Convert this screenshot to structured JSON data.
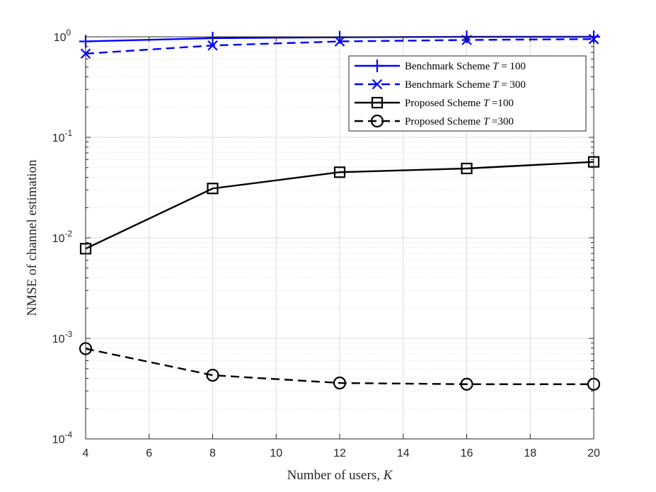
{
  "chart_data": {
    "type": "line",
    "title": "",
    "xlabel": "Number of users, K",
    "ylabel": "NMSE of channel estimation",
    "xscale": "linear",
    "yscale": "log",
    "xlim": [
      4,
      20
    ],
    "ylim": [
      0.0001,
      1
    ],
    "grid": true,
    "minor_grid": true,
    "legend_position": "top-right",
    "x_ticks": [
      4,
      6,
      8,
      10,
      12,
      14,
      16,
      18,
      20
    ],
    "x_tick_labels": [
      "4",
      "6",
      "8",
      "10",
      "12",
      "14",
      "16",
      "18",
      "20"
    ],
    "y_ticks": [
      0.0001,
      0.001,
      0.01,
      0.1,
      1
    ],
    "y_tick_labels": [
      {
        "base": "10",
        "exp": "-4"
      },
      {
        "base": "10",
        "exp": "-3"
      },
      {
        "base": "10",
        "exp": "-2"
      },
      {
        "base": "10",
        "exp": "-1"
      },
      {
        "base": "10",
        "exp": "0"
      }
    ],
    "x": [
      4,
      8,
      12,
      16,
      20
    ],
    "series": [
      {
        "name": "Benchmark Scheme T = 100",
        "label_text": "Benchmark Scheme ",
        "label_var": "T",
        "label_rest": " = 100",
        "color": "#0000ff",
        "line": "solid",
        "marker": "plus",
        "values": [
          0.9,
          0.97,
          0.99,
          1.0,
          1.0
        ]
      },
      {
        "name": "Benchmark Scheme T = 300",
        "label_text": "Benchmark Scheme ",
        "label_var": "T",
        "label_rest": " = 300",
        "color": "#0000ff",
        "line": "dashed",
        "marker": "x",
        "values": [
          0.68,
          0.82,
          0.9,
          0.93,
          0.95
        ]
      },
      {
        "name": "Proposed Scheme T =100",
        "label_text": "Proposed Scheme ",
        "label_var": "T",
        "label_rest": " =100",
        "color": "#000000",
        "line": "solid",
        "marker": "square",
        "values": [
          0.0078,
          0.031,
          0.045,
          0.049,
          0.057
        ]
      },
      {
        "name": "Proposed Scheme T =300",
        "label_text": "Proposed Scheme ",
        "label_var": "T",
        "label_rest": " =300",
        "color": "#000000",
        "line": "dashed",
        "marker": "circle",
        "values": [
          0.00079,
          0.00043,
          0.00036,
          0.00035,
          0.00035
        ]
      }
    ]
  }
}
